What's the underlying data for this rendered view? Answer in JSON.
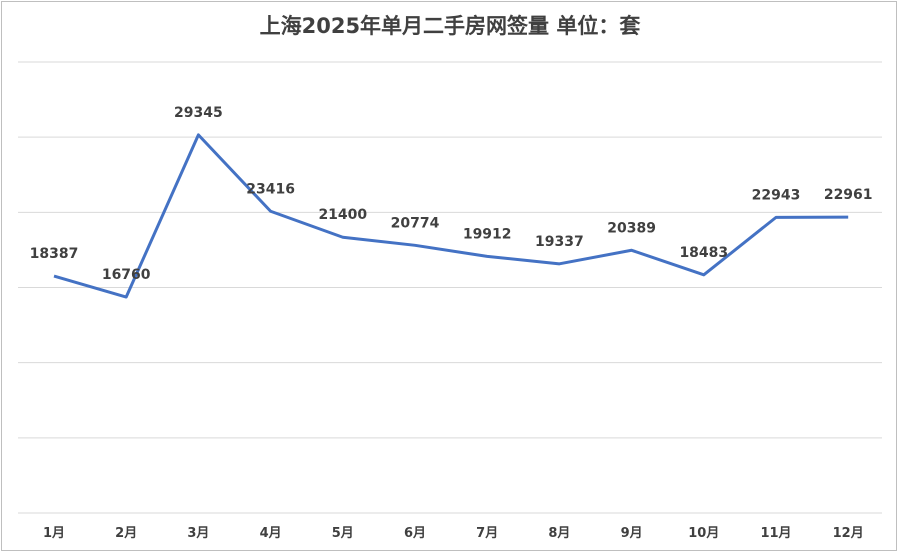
{
  "chart_data": {
    "type": "line",
    "title": "上海2025年单月二手房网签量 单位：套",
    "categories": [
      "1月",
      "2月",
      "3月",
      "4月",
      "5月",
      "6月",
      "7月",
      "8月",
      "9月",
      "10月",
      "11月",
      "12月"
    ],
    "series": [
      {
        "values": [
          18387,
          16760,
          29345,
          23416,
          21400,
          20774,
          19912,
          19337,
          20389,
          18483,
          22943,
          22961
        ]
      }
    ],
    "ylim": [
      0,
      35000
    ],
    "grid": true,
    "line_color": "#4472c4"
  }
}
